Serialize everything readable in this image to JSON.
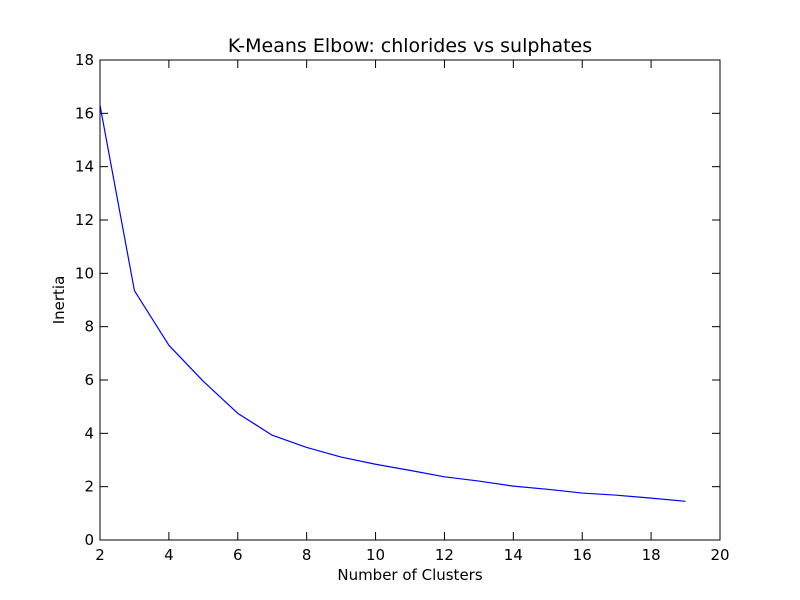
{
  "chart_data": {
    "type": "line",
    "title": "K-Means Elbow: chlorides vs sulphates",
    "xlabel": "Number of Clusters",
    "ylabel": "Inertia",
    "xlim": [
      2,
      20
    ],
    "ylim": [
      0,
      18
    ],
    "xticks": [
      2,
      4,
      6,
      8,
      10,
      12,
      14,
      16,
      18,
      20
    ],
    "yticks": [
      0,
      2,
      4,
      6,
      8,
      10,
      12,
      14,
      16,
      18
    ],
    "grid": false,
    "series": [
      {
        "color": "#0000ff",
        "x": [
          2,
          3,
          4,
          5,
          6,
          7,
          8,
          9,
          10,
          11,
          12,
          13,
          14,
          15,
          16,
          17,
          18,
          19
        ],
        "y": [
          16.3,
          9.35,
          7.3,
          5.95,
          4.75,
          3.93,
          3.47,
          3.11,
          2.84,
          2.61,
          2.37,
          2.21,
          2.02,
          1.9,
          1.76,
          1.68,
          1.57,
          1.45
        ]
      }
    ]
  }
}
